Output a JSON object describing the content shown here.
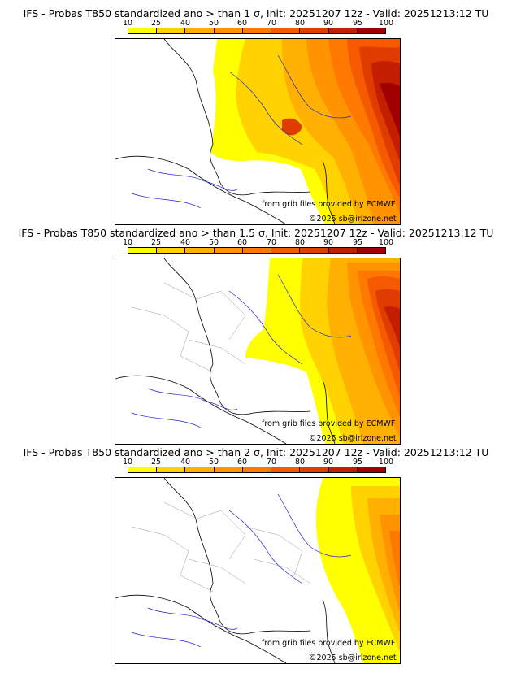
{
  "colorbar": {
    "ticks": [
      "10",
      "25",
      "40",
      "50",
      "60",
      "70",
      "80",
      "90",
      "95",
      "100"
    ],
    "colors": [
      "#ffff00",
      "#ffd200",
      "#ffb000",
      "#ff9400",
      "#ff7800",
      "#f55a00",
      "#e03c00",
      "#c41e00",
      "#a00000"
    ]
  },
  "panels": [
    {
      "title": "IFS - Probas T850  standardized ano > than 1 σ, Init: 20251207 12z - Valid: 20251213:12 TU",
      "credit1": "from grib files provided by ECMWF",
      "credit2": "©2025 sb@irizone.net"
    },
    {
      "title": "IFS - Probas T850  standardized ano > than 1.5 σ, Init: 20251207 12z - Valid: 20251213:12 TU",
      "credit1": "from grib files provided by ECMWF",
      "credit2": "©2025 sb@irizone.net"
    },
    {
      "title": "IFS - Probas T850  standardized ano > than 2 σ, Init: 20251207 12z - Valid: 20251213:12 TU",
      "credit1": "from grib files provided by ECMWF",
      "credit2": "©2025 sb@irizone.net"
    }
  ]
}
